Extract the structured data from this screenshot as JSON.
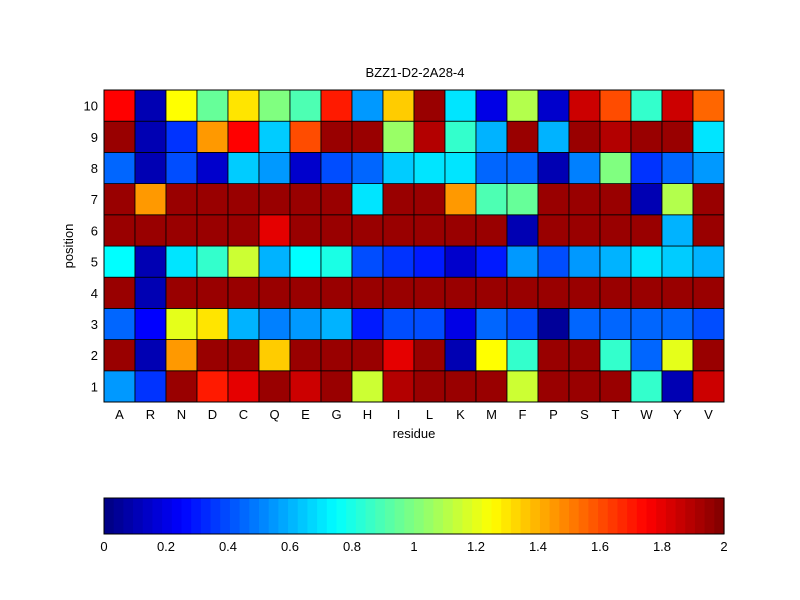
{
  "chart_data": {
    "type": "heatmap",
    "title": "BZZ1-D2-2A28-4",
    "xlabel": "residue",
    "ylabel": "position",
    "x": [
      "A",
      "R",
      "N",
      "D",
      "C",
      "Q",
      "E",
      "G",
      "H",
      "I",
      "L",
      "K",
      "M",
      "F",
      "P",
      "S",
      "T",
      "W",
      "Y",
      "V"
    ],
    "y": [
      "1",
      "2",
      "3",
      "4",
      "5",
      "6",
      "7",
      "8",
      "9",
      "10"
    ],
    "values": [
      [
        0.55,
        0.35,
        1.95,
        1.7,
        1.8,
        1.95,
        1.85,
        1.95,
        1.15,
        1.9,
        1.95,
        1.95,
        1.95,
        1.15,
        1.95,
        1.95,
        1.95,
        0.85,
        0.1,
        1.85
      ],
      [
        1.95,
        0.1,
        1.45,
        1.95,
        1.95,
        1.35,
        1.95,
        1.95,
        1.95,
        1.8,
        1.95,
        0.1,
        1.25,
        0.85,
        1.95,
        1.95,
        0.85,
        0.45,
        1.2,
        1.95
      ],
      [
        0.45,
        0.25,
        1.2,
        1.3,
        0.6,
        0.5,
        0.55,
        0.6,
        0.3,
        0.4,
        0.4,
        0.2,
        0.45,
        0.4,
        0.05,
        0.45,
        0.45,
        0.45,
        0.45,
        0.4
      ],
      [
        1.95,
        0.1,
        1.95,
        1.95,
        1.95,
        1.95,
        1.95,
        1.95,
        1.95,
        1.95,
        1.95,
        1.95,
        1.95,
        1.95,
        1.95,
        1.95,
        1.95,
        1.95,
        1.95,
        1.95
      ],
      [
        0.75,
        0.1,
        0.7,
        0.85,
        1.15,
        0.6,
        0.75,
        0.8,
        0.4,
        0.35,
        0.3,
        0.15,
        0.3,
        0.55,
        0.4,
        0.55,
        0.6,
        0.7,
        0.65,
        0.6
      ],
      [
        1.95,
        1.95,
        1.95,
        1.95,
        1.95,
        1.8,
        1.95,
        1.95,
        1.95,
        1.95,
        1.95,
        1.95,
        1.95,
        0.1,
        1.95,
        1.95,
        1.95,
        1.95,
        0.6,
        1.95
      ],
      [
        1.95,
        1.45,
        1.95,
        1.95,
        1.95,
        1.95,
        1.95,
        1.95,
        0.7,
        1.95,
        1.95,
        1.45,
        0.9,
        0.95,
        1.95,
        1.95,
        1.95,
        0.1,
        1.1,
        1.95
      ],
      [
        0.45,
        0.1,
        0.4,
        0.15,
        0.65,
        0.55,
        0.15,
        0.4,
        0.45,
        0.65,
        0.7,
        0.7,
        0.45,
        0.45,
        0.1,
        0.5,
        1.0,
        0.35,
        0.45,
        0.55
      ],
      [
        1.95,
        0.1,
        0.35,
        1.45,
        1.75,
        0.65,
        1.6,
        1.95,
        1.95,
        1.05,
        1.9,
        0.85,
        0.6,
        1.95,
        0.6,
        1.95,
        1.9,
        1.95,
        1.95,
        0.7
      ],
      [
        1.75,
        0.1,
        1.25,
        0.95,
        1.3,
        1.0,
        0.9,
        1.7,
        0.55,
        1.35,
        1.95,
        0.7,
        0.2,
        1.1,
        0.15,
        1.85,
        1.6,
        0.85,
        1.85,
        1.55
      ]
    ],
    "colorbar": {
      "min": 0,
      "max": 2,
      "ticks": [
        0,
        0.2,
        0.4,
        0.6,
        0.8,
        1,
        1.2,
        1.4,
        1.6,
        1.8,
        2
      ],
      "tick_labels": [
        "0",
        "0.2",
        "0.4",
        "0.6",
        "0.8",
        "1",
        "1.2",
        "1.4",
        "1.6",
        "1.8",
        "2"
      ],
      "orientation": "horizontal",
      "placement": "bottom"
    },
    "colormap": "jet"
  }
}
